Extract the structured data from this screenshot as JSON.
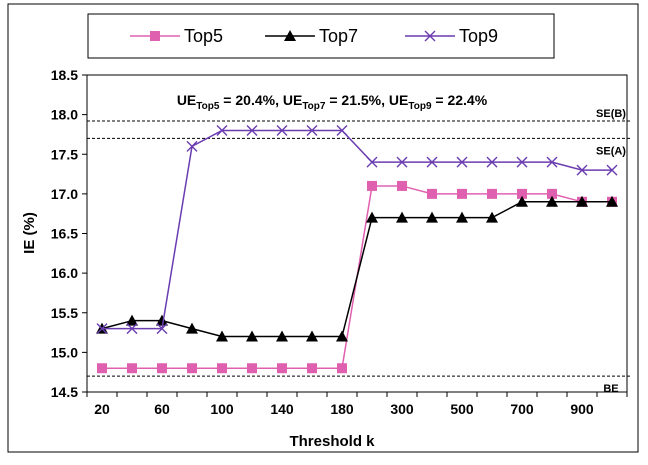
{
  "chart_data": {
    "type": "line",
    "xlabel": "Threshold k",
    "ylabel": "IE (%)",
    "ylim": [
      14.5,
      18.5
    ],
    "yticks": [
      "14.5",
      "15.0",
      "15.5",
      "16.0",
      "16.5",
      "17.0",
      "17.5",
      "18.0",
      "18.5"
    ],
    "categories": [
      "20",
      "40",
      "60",
      "80",
      "100",
      "120",
      "140",
      "160",
      "180",
      "200",
      "300",
      "400",
      "500",
      "600",
      "700",
      "800",
      "900",
      "1000"
    ],
    "xtick_labels": [
      "20",
      "60",
      "100",
      "140",
      "180",
      "300",
      "500",
      "700",
      "900"
    ],
    "grid": false,
    "legend_position": "top",
    "series": [
      {
        "name": "Top5",
        "color": "#e060b0",
        "marker": "square",
        "values": [
          14.8,
          14.8,
          14.8,
          14.8,
          14.8,
          14.8,
          14.8,
          14.8,
          14.8,
          17.1,
          17.1,
          17.0,
          17.0,
          17.0,
          17.0,
          17.0,
          16.9,
          16.9
        ]
      },
      {
        "name": "Top7",
        "color": "#000000",
        "marker": "triangle",
        "values": [
          15.3,
          15.4,
          15.4,
          15.3,
          15.2,
          15.2,
          15.2,
          15.2,
          15.2,
          16.7,
          16.7,
          16.7,
          16.7,
          16.7,
          16.9,
          16.9,
          16.9,
          16.9
        ]
      },
      {
        "name": "Top9",
        "color": "#6a3cb0",
        "marker": "x",
        "values": [
          15.3,
          15.3,
          15.3,
          17.6,
          17.8,
          17.8,
          17.8,
          17.8,
          17.8,
          17.4,
          17.4,
          17.4,
          17.4,
          17.4,
          17.4,
          17.4,
          17.3,
          17.3
        ]
      }
    ],
    "reference_lines": [
      {
        "label": "SE(B)",
        "value": 17.92
      },
      {
        "label": "SE(A)",
        "value": 17.7
      },
      {
        "label": "BE",
        "value": 14.7
      }
    ],
    "annotation": {
      "parts": [
        {
          "text": "UE",
          "sub": "Top5",
          "rest": " = 20.4%, "
        },
        {
          "text": "UE",
          "sub": "Top7",
          "rest": " = 21.5%, "
        },
        {
          "text": "UE",
          "sub": "Top9",
          "rest": " = 22.4%"
        }
      ]
    }
  }
}
